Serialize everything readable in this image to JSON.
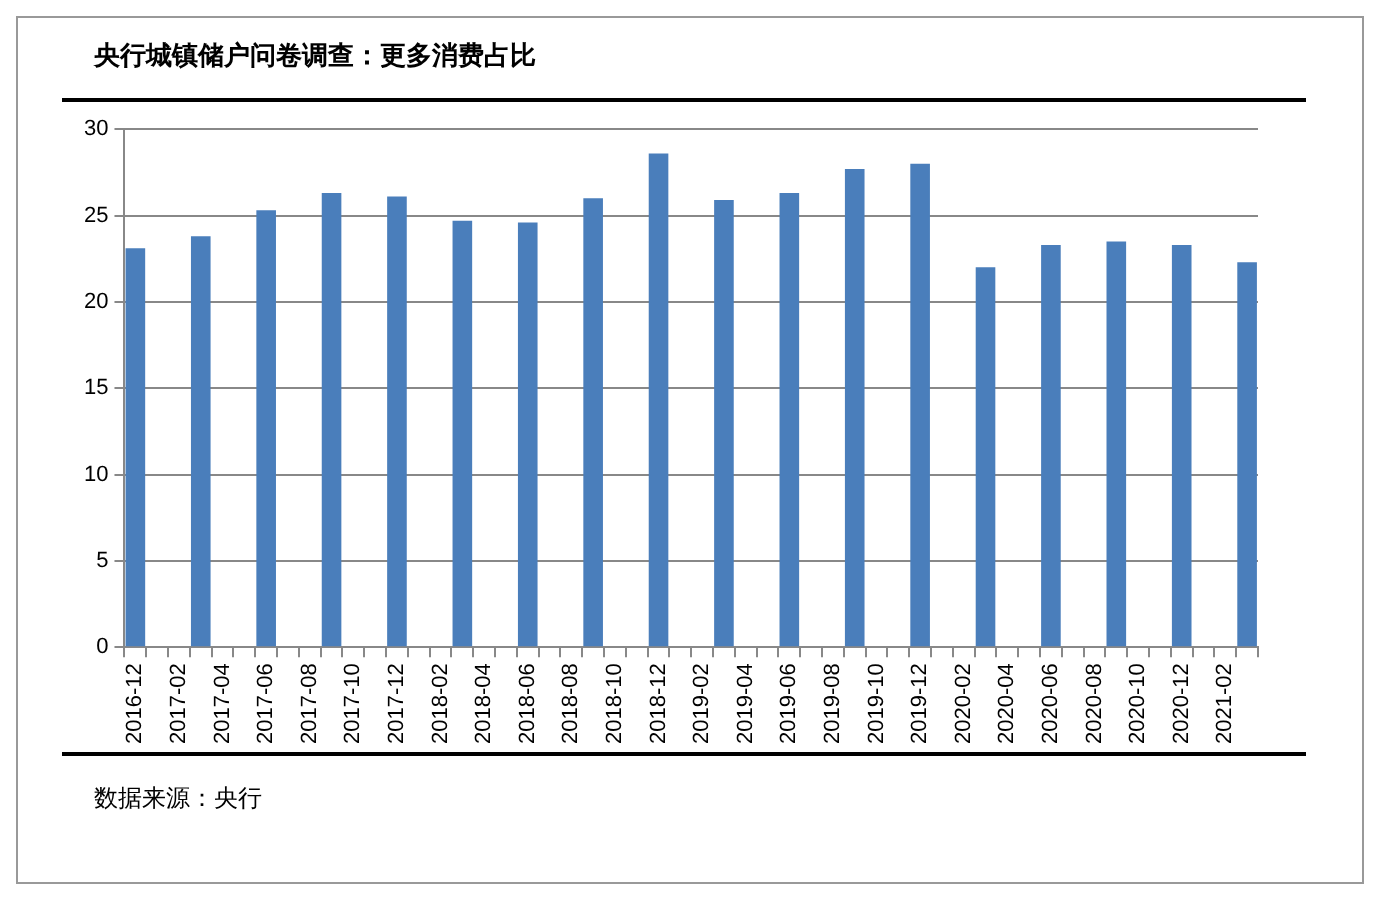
{
  "chart_data": {
    "type": "bar",
    "title": "央行城镇储户问卷调查：更多消费占比",
    "annotations": [
      "数据来源：央行"
    ],
    "categories": [
      "2016-12",
      null,
      "2017-02",
      null,
      "2017-04",
      null,
      "2017-06",
      null,
      "2017-08",
      null,
      "2017-10",
      null,
      "2017-12",
      null,
      "2018-02",
      null,
      "2018-04",
      null,
      "2018-06",
      null,
      "2018-08",
      null,
      "2018-10",
      null,
      "2018-12",
      null,
      "2019-02",
      null,
      "2019-04",
      null,
      "2019-06",
      null,
      "2019-08",
      null,
      "2019-10",
      null,
      "2019-12",
      null,
      "2020-02",
      null,
      "2020-04",
      null,
      "2020-06",
      null,
      "2020-08",
      null,
      "2020-10",
      null,
      "2020-12",
      null,
      "2021-02",
      null
    ],
    "values": [
      23.1,
      null,
      null,
      23.8,
      null,
      null,
      25.3,
      null,
      null,
      26.3,
      null,
      null,
      26.1,
      null,
      null,
      24.7,
      null,
      null,
      24.6,
      null,
      null,
      26.0,
      null,
      null,
      28.6,
      null,
      null,
      25.9,
      null,
      null,
      26.3,
      null,
      null,
      27.7,
      null,
      null,
      28.0,
      null,
      null,
      22.0,
      null,
      null,
      23.3,
      null,
      null,
      23.5,
      null,
      null,
      23.3,
      null,
      null,
      22.3
    ],
    "color": "#4a7ebb",
    "ylim": [
      0,
      30
    ],
    "yticks": [
      0,
      5,
      10,
      15,
      20,
      25,
      30
    ],
    "grid": "y",
    "legend": false
  }
}
